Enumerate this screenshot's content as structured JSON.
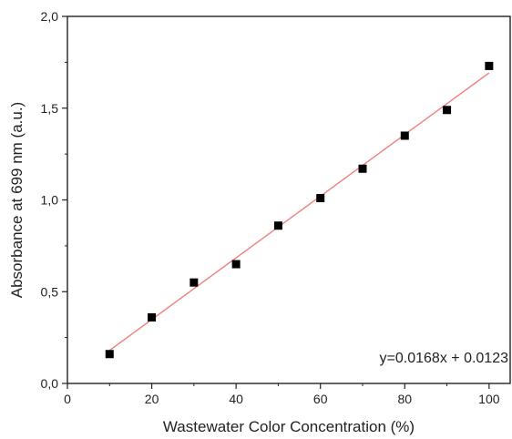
{
  "chart_data": {
    "type": "scatter",
    "xlabel": "Wastewater Color Concentration (%)",
    "ylabel": "Absorbance at 699 nm (a.u.)",
    "xlim": [
      0,
      105
    ],
    "ylim": [
      0,
      2.0
    ],
    "x_ticks": [
      0,
      20,
      40,
      60,
      80,
      100
    ],
    "x_tick_labels": [
      "0",
      "20",
      "40",
      "60",
      "80",
      "100"
    ],
    "y_ticks": [
      0,
      0.5,
      1.0,
      1.5,
      2.0
    ],
    "y_tick_labels": [
      "0,0",
      "0,5",
      "1,0",
      "1,5",
      "2,0"
    ],
    "grid": false,
    "series": [
      {
        "x": [
          10,
          20,
          30,
          40,
          50,
          60,
          70,
          80,
          90,
          100
        ],
        "y": [
          0.16,
          0.36,
          0.55,
          0.65,
          0.86,
          1.01,
          1.17,
          1.35,
          1.49,
          1.73
        ],
        "marker": "square",
        "color": "#000000"
      }
    ],
    "fit": {
      "slope": 0.0168,
      "intercept": 0.0123,
      "x_range": [
        10,
        100
      ],
      "color": "#f08080",
      "equation": "y=0.0168x + 0.0123"
    }
  }
}
